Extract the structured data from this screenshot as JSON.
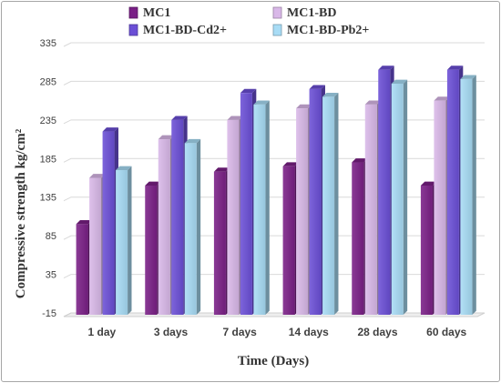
{
  "chart_data": {
    "type": "bar",
    "categories": [
      "1 day",
      "3 days",
      "7 days",
      "14 days",
      "28 days",
      "60 days"
    ],
    "series": [
      {
        "name": "MC1",
        "values": [
          100,
          150,
          168,
          175,
          180,
          150
        ],
        "color": "#7a1f86"
      },
      {
        "name": "MC1-BD",
        "values": [
          160,
          210,
          235,
          250,
          255,
          260
        ],
        "color": "#d9b8e8"
      },
      {
        "name": "MC1-BD-Cd2+",
        "values": [
          220,
          235,
          270,
          275,
          300,
          300
        ],
        "color": "#6b4fd6"
      },
      {
        "name": "MC1-BD-Pb2+",
        "values": [
          170,
          205,
          255,
          265,
          282,
          288
        ],
        "color": "#a8dcf5"
      }
    ],
    "xlabel": "Time (Days)",
    "ylabel": "Compressive strength kg/cm²",
    "ylim": [
      -15,
      335
    ],
    "yticks": [
      -15,
      35,
      85,
      135,
      185,
      235,
      285,
      335
    ],
    "grid": true,
    "legend_position": "top"
  }
}
